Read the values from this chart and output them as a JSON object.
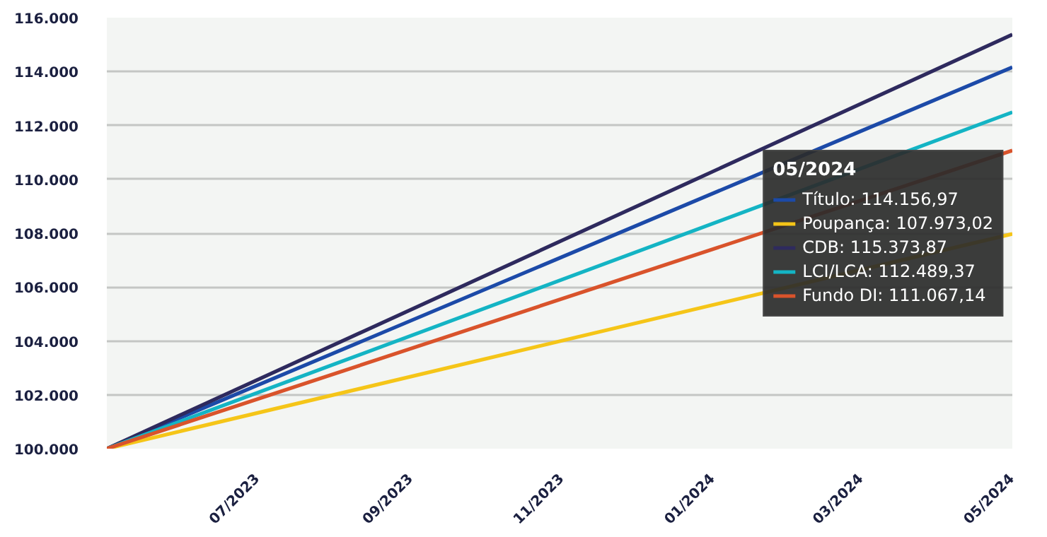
{
  "chart_data": {
    "type": "line",
    "legend_title": "05/2024",
    "x": [
      "2023-05",
      "2024-05"
    ],
    "series": [
      {
        "name": "Título: 114.156,97",
        "color": "#1c4aa8",
        "values": [
          100000,
          114156.97
        ]
      },
      {
        "name": "Poupança: 107.973,02",
        "color": "#f5c518",
        "values": [
          100000,
          107973.02
        ]
      },
      {
        "name": "CDB: 115.373,87",
        "color": "#2e2a5e",
        "values": [
          100000,
          115373.87
        ]
      },
      {
        "name": "LCI/LCA: 112.489,37",
        "color": "#14b4c4",
        "values": [
          100000,
          112489.37
        ]
      },
      {
        "name": "Fundo DI: 111.067,14",
        "color": "#d9532b",
        "values": [
          100000,
          111067.14
        ]
      }
    ],
    "xlim": [
      "2023-05",
      "2024-05"
    ],
    "xticks": [
      {
        "value": "2023-07",
        "label": "07/2023"
      },
      {
        "value": "2023-09",
        "label": "09/2023"
      },
      {
        "value": "2023-11",
        "label": "11/2023"
      },
      {
        "value": "2024-01",
        "label": "01/2024"
      },
      {
        "value": "2024-03",
        "label": "03/2024"
      },
      {
        "value": "2024-05",
        "label": "05/2024"
      }
    ],
    "ylim": [
      100000,
      116000
    ],
    "yticks": [
      {
        "value": 100000,
        "label": "100.000"
      },
      {
        "value": 102000,
        "label": "102.000"
      },
      {
        "value": 104000,
        "label": "104.000"
      },
      {
        "value": 106000,
        "label": "106.000"
      },
      {
        "value": 108000,
        "label": "108.000"
      },
      {
        "value": 110000,
        "label": "110.000"
      },
      {
        "value": 112000,
        "label": "112.000"
      },
      {
        "value": 114000,
        "label": "114.000"
      },
      {
        "value": 116000,
        "label": "116.000"
      }
    ],
    "grid": "y",
    "legend": "right",
    "line_style": "solid"
  }
}
